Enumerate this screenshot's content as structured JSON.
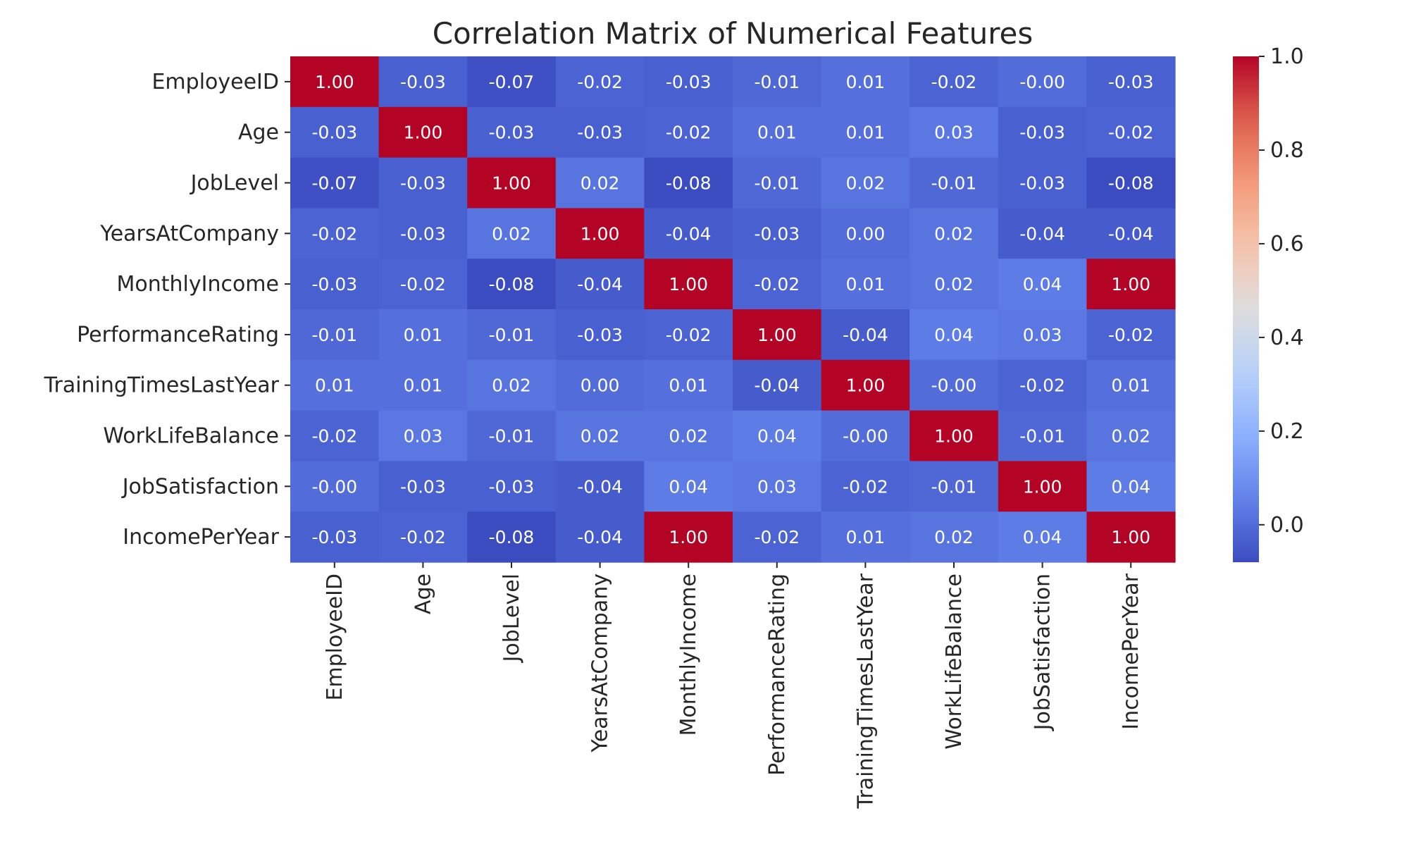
{
  "chart_data": {
    "type": "heatmap",
    "title": "Correlation Matrix of Numerical Features",
    "xlabel": "",
    "ylabel": "",
    "labels": [
      "EmployeeID",
      "Age",
      "JobLevel",
      "YearsAtCompany",
      "MonthlyIncome",
      "PerformanceRating",
      "TrainingTimesLastYear",
      "WorkLifeBalance",
      "JobSatisfaction",
      "IncomePerYear"
    ],
    "values": [
      [
        1.0,
        -0.03,
        -0.07,
        -0.02,
        -0.03,
        -0.01,
        0.01,
        -0.02,
        -0.0,
        -0.03
      ],
      [
        -0.03,
        1.0,
        -0.03,
        -0.03,
        -0.02,
        0.01,
        0.01,
        0.03,
        -0.03,
        -0.02
      ],
      [
        -0.07,
        -0.03,
        1.0,
        0.02,
        -0.08,
        -0.01,
        0.02,
        -0.01,
        -0.03,
        -0.08
      ],
      [
        -0.02,
        -0.03,
        0.02,
        1.0,
        -0.04,
        -0.03,
        0.0,
        0.02,
        -0.04,
        -0.04
      ],
      [
        -0.03,
        -0.02,
        -0.08,
        -0.04,
        1.0,
        -0.02,
        0.01,
        0.02,
        0.04,
        1.0
      ],
      [
        -0.01,
        0.01,
        -0.01,
        -0.03,
        -0.02,
        1.0,
        -0.04,
        0.04,
        0.03,
        -0.02
      ],
      [
        0.01,
        0.01,
        0.02,
        0.0,
        0.01,
        -0.04,
        1.0,
        -0.0,
        -0.02,
        0.01
      ],
      [
        -0.02,
        0.03,
        -0.01,
        0.02,
        0.02,
        0.04,
        -0.0,
        1.0,
        -0.01,
        0.02
      ],
      [
        -0.0,
        -0.03,
        -0.03,
        -0.04,
        0.04,
        0.03,
        -0.02,
        -0.01,
        1.0,
        0.04
      ],
      [
        -0.03,
        -0.02,
        -0.08,
        -0.04,
        1.0,
        -0.02,
        0.01,
        0.02,
        0.04,
        1.0
      ]
    ],
    "cell_text": [
      [
        "1.00",
        "-0.03",
        "-0.07",
        "-0.02",
        "-0.03",
        "-0.01",
        "0.01",
        "-0.02",
        "-0.00",
        "-0.03"
      ],
      [
        "-0.03",
        "1.00",
        "-0.03",
        "-0.03",
        "-0.02",
        "0.01",
        "0.01",
        "0.03",
        "-0.03",
        "-0.02"
      ],
      [
        "-0.07",
        "-0.03",
        "1.00",
        "0.02",
        "-0.08",
        "-0.01",
        "0.02",
        "-0.01",
        "-0.03",
        "-0.08"
      ],
      [
        "-0.02",
        "-0.03",
        "0.02",
        "1.00",
        "-0.04",
        "-0.03",
        "0.00",
        "0.02",
        "-0.04",
        "-0.04"
      ],
      [
        "-0.03",
        "-0.02",
        "-0.08",
        "-0.04",
        "1.00",
        "-0.02",
        "0.01",
        "0.02",
        "0.04",
        "1.00"
      ],
      [
        "-0.01",
        "0.01",
        "-0.01",
        "-0.03",
        "-0.02",
        "1.00",
        "-0.04",
        "0.04",
        "0.03",
        "-0.02"
      ],
      [
        "0.01",
        "0.01",
        "0.02",
        "0.00",
        "0.01",
        "-0.04",
        "1.00",
        "-0.00",
        "-0.02",
        "0.01"
      ],
      [
        "-0.02",
        "0.03",
        "-0.01",
        "0.02",
        "0.02",
        "0.04",
        "-0.00",
        "1.00",
        "-0.01",
        "0.02"
      ],
      [
        "-0.00",
        "-0.03",
        "-0.03",
        "-0.04",
        "0.04",
        "0.03",
        "-0.02",
        "-0.01",
        "1.00",
        "0.04"
      ],
      [
        "-0.03",
        "-0.02",
        "-0.08",
        "-0.04",
        "1.00",
        "-0.02",
        "0.01",
        "0.02",
        "0.04",
        "1.00"
      ]
    ],
    "colormap": "coolwarm",
    "colorbar": {
      "range": [
        -0.08,
        1.0
      ],
      "ticks": [
        0.0,
        0.2,
        0.4,
        0.6,
        0.8,
        1.0
      ],
      "tick_labels": [
        "0.0",
        "0.2",
        "0.4",
        "0.6",
        "0.8",
        "1.0"
      ],
      "placement": "right"
    },
    "grid": false
  }
}
